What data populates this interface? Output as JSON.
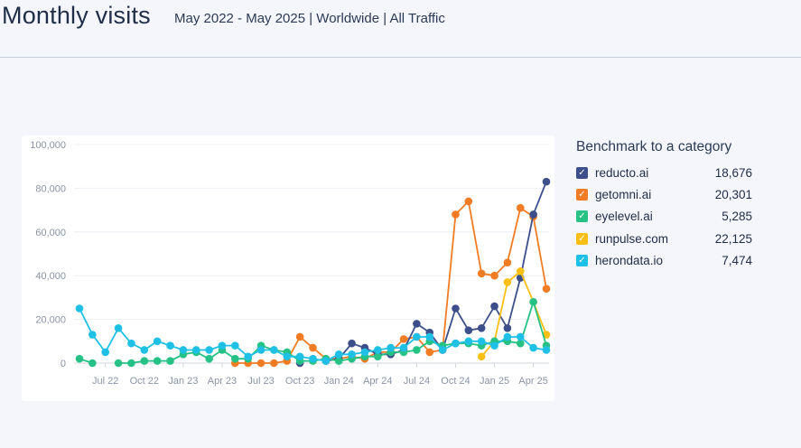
{
  "header": {
    "title": "Monthly visits",
    "subtitle": "May 2022 - May 2025 | Worldwide | All Traffic"
  },
  "legend": {
    "title": "Benchmark to a category",
    "items": [
      {
        "name": "reducto.ai",
        "value": "18,676",
        "color": "#3d4f8a"
      },
      {
        "name": "getomni.ai",
        "value": "20,301",
        "color": "#f27c24"
      },
      {
        "name": "eyelevel.ai",
        "value": "5,285",
        "color": "#26c285"
      },
      {
        "name": "runpulse.com",
        "value": "22,125",
        "color": "#fbbf14"
      },
      {
        "name": "herondata.io",
        "value": "7,474",
        "color": "#1ec0e6"
      }
    ]
  },
  "chart_data": {
    "type": "line",
    "x": [
      "May 22",
      "Jun 22",
      "Jul 22",
      "Aug 22",
      "Sep 22",
      "Oct 22",
      "Nov 22",
      "Dec 22",
      "Jan 23",
      "Feb 23",
      "Mar 23",
      "Apr 23",
      "May 23",
      "Jun 23",
      "Jul 23",
      "Aug 23",
      "Sep 23",
      "Oct 23",
      "Nov 23",
      "Dec 23",
      "Jan 24",
      "Feb 24",
      "Mar 24",
      "Apr 24",
      "May 24",
      "Jun 24",
      "Jul 24",
      "Aug 24",
      "Sep 24",
      "Oct 24",
      "Nov 24",
      "Dec 24",
      "Jan 25",
      "Feb 25",
      "Mar 25",
      "Apr 25",
      "May 25"
    ],
    "x_tick_labels": [
      "Jul 22",
      "Oct 22",
      "Jan 23",
      "Apr 23",
      "Jul 23",
      "Oct 23",
      "Jan 24",
      "Apr 24",
      "Jul 24",
      "Oct 24",
      "Jan 25",
      "Apr 25"
    ],
    "x_tick_months": [
      "Jul 22",
      "Oct 22",
      "Jan 23",
      "Apr 23",
      "Jul 23",
      "Oct 23",
      "Jan 24",
      "Apr 24",
      "Jul 24",
      "Oct 24",
      "Jan 25",
      "Apr 25"
    ],
    "y_ticks": [
      "0",
      "20,000",
      "40,000",
      "60,000",
      "80,000",
      "100,000"
    ],
    "ylim": [
      0,
      100000
    ],
    "grid": true,
    "legend_position": "right",
    "series": [
      {
        "name": "reducto.ai",
        "color": "#3d4f8a",
        "values": [
          null,
          null,
          null,
          null,
          null,
          null,
          null,
          null,
          null,
          null,
          null,
          null,
          null,
          null,
          null,
          null,
          null,
          0,
          null,
          1000,
          2000,
          9000,
          7000,
          4000,
          4000,
          6000,
          18000,
          14000,
          6000,
          25000,
          15000,
          16000,
          26000,
          16000,
          39000,
          68000,
          83000
        ]
      },
      {
        "name": "getomni.ai",
        "color": "#f27c24",
        "values": [
          null,
          null,
          null,
          null,
          null,
          null,
          null,
          null,
          null,
          null,
          null,
          null,
          0,
          0,
          0,
          0,
          1000,
          12000,
          7000,
          2000,
          2000,
          3000,
          2000,
          5000,
          5000,
          11000,
          12000,
          5000,
          6000,
          68000,
          74000,
          41000,
          40000,
          46000,
          71000,
          67000,
          34000
        ]
      },
      {
        "name": "eyelevel.ai",
        "color": "#26c285",
        "values": [
          2000,
          0,
          null,
          0,
          0,
          1000,
          1000,
          1000,
          4000,
          5000,
          2000,
          6000,
          2000,
          2000,
          8000,
          6000,
          5000,
          1000,
          1000,
          2000,
          1000,
          2000,
          3000,
          3000,
          5000,
          5000,
          6000,
          10000,
          8000,
          9000,
          9000,
          8000,
          10000,
          10000,
          9000,
          28000,
          8000
        ]
      },
      {
        "name": "runpulse.com",
        "color": "#fbbf14",
        "values": [
          null,
          null,
          null,
          null,
          null,
          null,
          null,
          null,
          null,
          null,
          null,
          null,
          null,
          null,
          null,
          null,
          null,
          null,
          null,
          null,
          null,
          null,
          null,
          null,
          null,
          null,
          null,
          null,
          null,
          null,
          null,
          3000,
          10000,
          37000,
          42000,
          28000,
          13000
        ]
      },
      {
        "name": "herondata.io",
        "color": "#1ec0e6",
        "values": [
          25000,
          13000,
          5000,
          16000,
          9000,
          6000,
          10000,
          8000,
          6000,
          6000,
          6000,
          8000,
          8000,
          3000,
          6000,
          6000,
          3000,
          3000,
          2000,
          1000,
          4000,
          4000,
          5000,
          6000,
          7000,
          7000,
          12000,
          12000,
          6000,
          9000,
          10000,
          10000,
          8000,
          12000,
          12000,
          7000,
          6000
        ]
      }
    ]
  }
}
